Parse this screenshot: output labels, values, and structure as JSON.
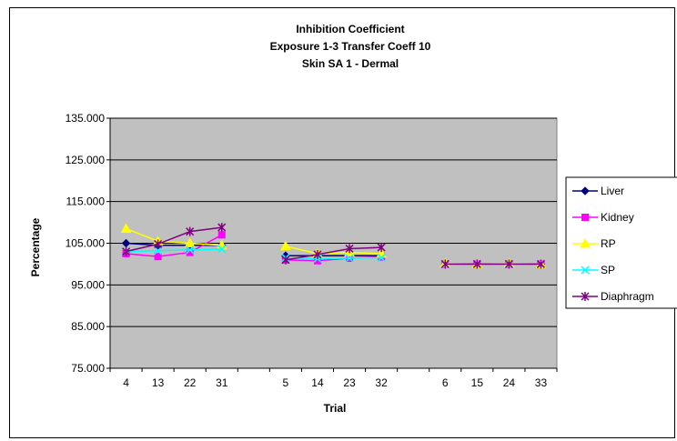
{
  "chart_data": {
    "type": "line",
    "title": [
      "Inhibition Coefficient",
      "Exposure 1-3 Transfer Coeff 10",
      "Skin SA 1 - Dermal"
    ],
    "xlabel": "Trial",
    "ylabel": "Percentage",
    "ylim": [
      75,
      135
    ],
    "yticks": [
      "75.000",
      "85.000",
      "95.000",
      "105.000",
      "115.000",
      "125.000",
      "135.000"
    ],
    "grid": true,
    "plot_background": "#c0c0c0",
    "legend_position": "right",
    "categories": [
      "4",
      "13",
      "22",
      "31",
      "",
      "5",
      "14",
      "23",
      "32",
      "",
      "6",
      "15",
      "24",
      "33"
    ],
    "series": [
      {
        "name": "Liver",
        "color": "#000080",
        "marker": "diamond",
        "values": [
          105.0,
          104.5,
          104.5,
          104.5,
          null,
          102.0,
          102.0,
          102.0,
          102.0,
          null,
          100.0,
          100.0,
          100.0,
          100.0
        ]
      },
      {
        "name": "Kidney",
        "color": "#ff00ff",
        "marker": "square",
        "values": [
          102.5,
          101.8,
          102.8,
          107.0,
          null,
          101.0,
          100.8,
          101.4,
          101.7,
          null,
          100.0,
          100.0,
          100.0,
          100.0
        ]
      },
      {
        "name": "RP",
        "color": "#ffff00",
        "marker": "triangle",
        "values": [
          108.5,
          105.5,
          105.0,
          104.5,
          null,
          104.3,
          102.5,
          102.8,
          102.5,
          null,
          100.2,
          100.0,
          100.2,
          100.0
        ]
      },
      {
        "name": "SP",
        "color": "#00ffff",
        "marker": "x",
        "values": [
          103.0,
          103.2,
          103.4,
          103.6,
          null,
          101.5,
          101.3,
          101.4,
          101.5,
          null,
          100.0,
          100.0,
          100.0,
          100.0
        ]
      },
      {
        "name": "Diaphragm",
        "color": "#800080",
        "marker": "star",
        "values": [
          103.0,
          104.8,
          107.8,
          108.8,
          null,
          101.0,
          102.3,
          103.7,
          104.0,
          null,
          100.0,
          100.0,
          100.0,
          100.0
        ]
      }
    ]
  }
}
